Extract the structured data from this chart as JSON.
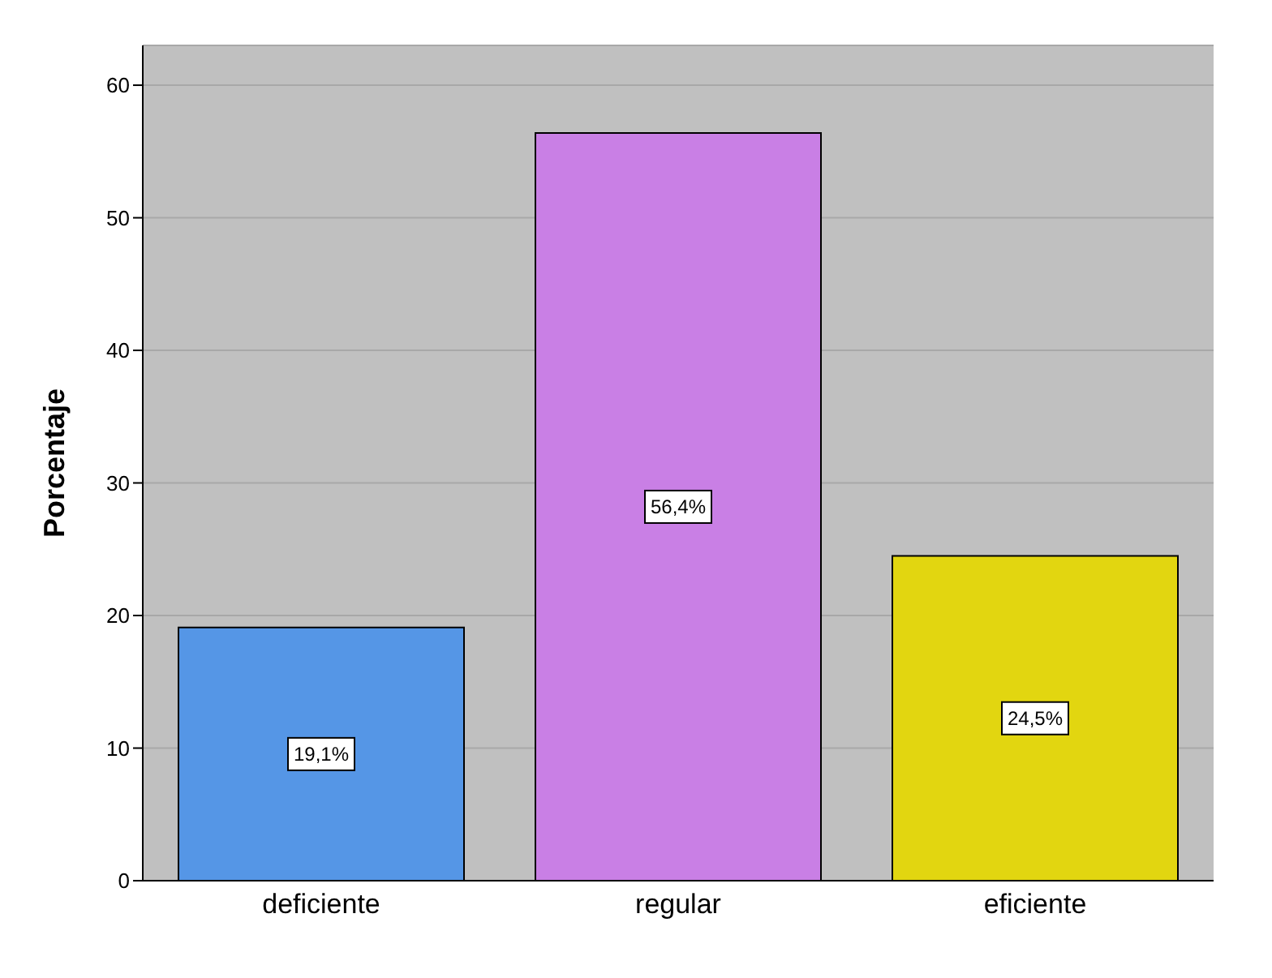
{
  "chart_data": {
    "type": "bar",
    "ylabel": "Porcentaje",
    "categories": [
      "deficiente",
      "regular",
      "eficiente"
    ],
    "values": [
      19.1,
      56.4,
      24.5
    ],
    "colors": [
      "#5596e6",
      "#c97fe5",
      "#e2d610"
    ],
    "value_labels": [
      "19,1%",
      "56,4%",
      "24,5%"
    ],
    "ylim": [
      0,
      63
    ],
    "yticks": [
      0,
      10,
      20,
      30,
      40,
      50,
      60
    ],
    "grid": "y"
  }
}
